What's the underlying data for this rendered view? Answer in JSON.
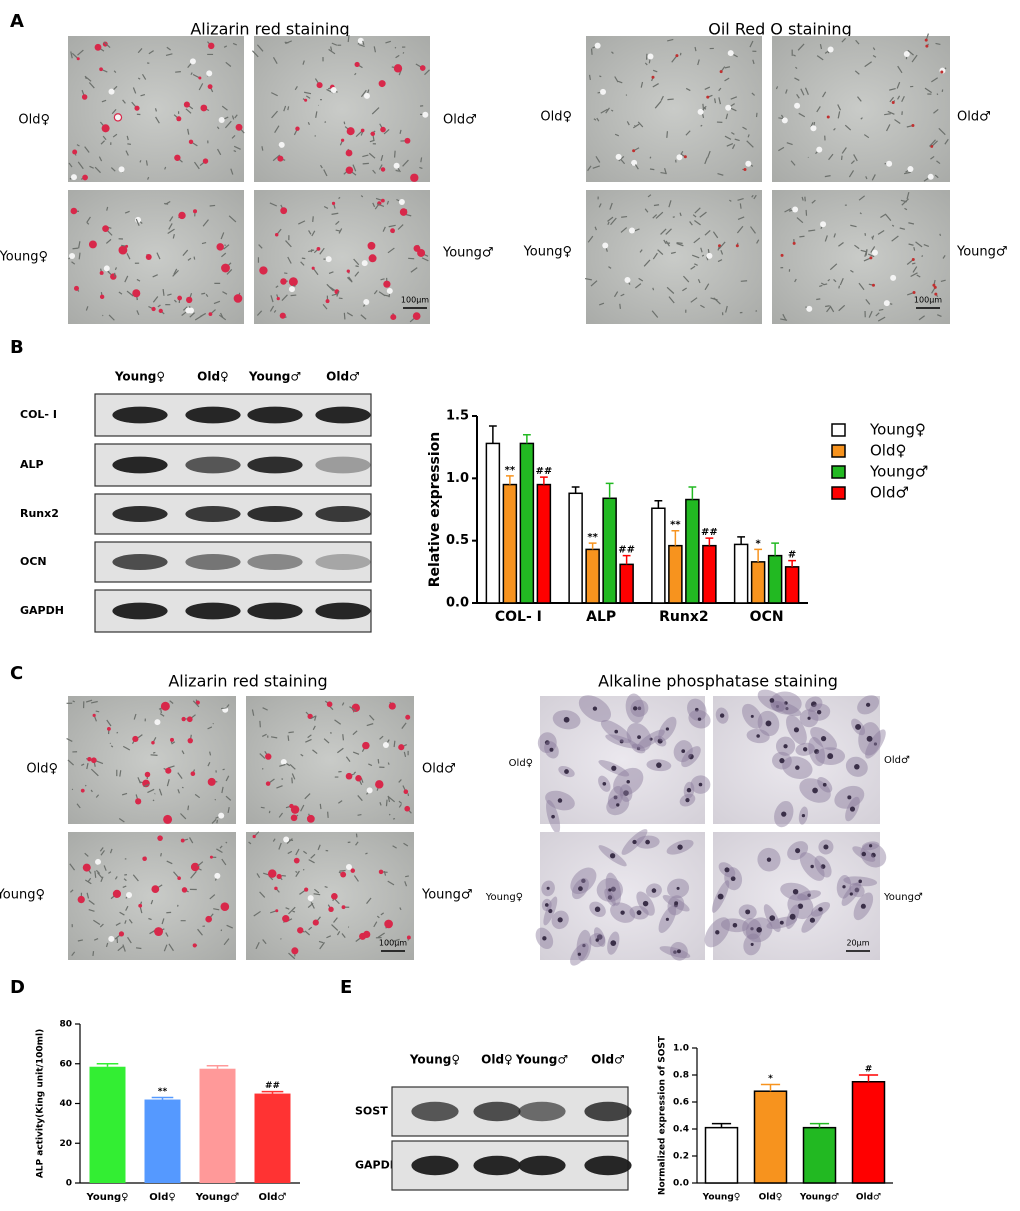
{
  "panels": {
    "A": {
      "letter": "A",
      "left_title": "Alizarin red staining",
      "right_title": "Oil Red O staining",
      "left_labels": [
        "Old♀",
        "Old♂",
        "Young♀",
        "Young♂"
      ],
      "right_labels": [
        "Old♀",
        "Old♂",
        "Young♀",
        "Young♂"
      ],
      "left_scale": "100μm",
      "right_scale": "100μm"
    },
    "B": {
      "letter": "B",
      "blot_columns": [
        "Young♀",
        "Old♀",
        "Young♂",
        "Old♂"
      ],
      "blot_rows": [
        "COL- Ⅰ",
        "ALP",
        "Runx2",
        "OCN",
        "GAPDH"
      ]
    },
    "C": {
      "letter": "C",
      "left_title": "Alizarin red staining",
      "right_title": "Alkaline phosphatase staining",
      "left_labels": [
        "Old♀",
        "Old♂",
        "Young♀",
        "Young♂"
      ],
      "right_labels": [
        "Old♀",
        "Old♂",
        "Young♀",
        "Young♂"
      ],
      "left_scale": "100μm",
      "right_scale": "20μm"
    },
    "D": {
      "letter": "D"
    },
    "E": {
      "letter": "E",
      "blot_columns": [
        "Young♀",
        "Old♀",
        "Young♂",
        "Old♂"
      ],
      "blot_rows": [
        "SOST",
        "GAPDH"
      ]
    }
  },
  "chart_data": [
    {
      "type": "bar",
      "y_label": "Relative expression",
      "categories": [
        "COL- Ⅰ",
        "ALP",
        "Runx2",
        "OCN"
      ],
      "ylim": [
        0,
        1.5
      ],
      "yticks": [
        {
          "value": 0,
          "label": "0.0"
        },
        0.5,
        {
          "value": 1,
          "label": "1.0"
        },
        1.5
      ],
      "edge_color": "#000000",
      "series": [
        {
          "name": "Young♀",
          "color": "#ffffff",
          "values": [
            1.28,
            0.88,
            0.76,
            0.47
          ],
          "errors": [
            0.14,
            0.05,
            0.06,
            0.06
          ]
        },
        {
          "name": "Old♀",
          "color": "#f7931e",
          "values": [
            0.95,
            0.43,
            0.46,
            0.33
          ],
          "errors": [
            0.07,
            0.05,
            0.12,
            0.1
          ],
          "annotations": [
            "**",
            "**",
            "**",
            "*"
          ]
        },
        {
          "name": "Young♂",
          "color": "#22b922",
          "values": [
            1.28,
            0.84,
            0.83,
            0.38
          ],
          "errors": [
            0.07,
            0.12,
            0.1,
            0.1
          ]
        },
        {
          "name": "Old♂",
          "color": "#ff0000",
          "values": [
            0.95,
            0.31,
            0.46,
            0.29
          ],
          "errors": [
            0.06,
            0.07,
            0.06,
            0.05
          ],
          "annotations": [
            "##",
            "##",
            "##",
            "#"
          ]
        }
      ],
      "legend": "right"
    },
    {
      "type": "bar",
      "y_label": "ALP activity(King unit/100ml)",
      "categories": [
        "Young♀",
        "Old♀",
        "Young♂",
        "Old♂"
      ],
      "values": [
        58.5,
        42,
        57.5,
        45
      ],
      "errors": [
        1.5,
        1,
        1.5,
        1
      ],
      "annotations": [
        null,
        "**",
        null,
        "##"
      ],
      "colors": [
        "#33ee33",
        "#5599ff",
        "#ff9999",
        "#ff3333"
      ],
      "ylim": [
        0,
        80
      ],
      "yticks": [
        0,
        20,
        40,
        60,
        80
      ]
    },
    {
      "type": "bar",
      "y_label": "Normalized expression of SOST",
      "categories": [
        "Young♀",
        "Old♀",
        "Young♂",
        "Old♂"
      ],
      "values": [
        0.41,
        0.68,
        0.41,
        0.75
      ],
      "errors": [
        0.03,
        0.05,
        0.03,
        0.05
      ],
      "annotations": [
        null,
        "*",
        null,
        "#"
      ],
      "colors": [
        "#ffffff",
        "#f7931e",
        "#22b922",
        "#ff0000"
      ],
      "edge_color": "#000000",
      "ylim": [
        0,
        1
      ],
      "yticks": [
        {
          "value": 0,
          "label": "0.0"
        },
        0.2,
        0.4,
        0.6,
        0.8,
        {
          "value": 1,
          "label": "1.0"
        }
      ]
    }
  ]
}
